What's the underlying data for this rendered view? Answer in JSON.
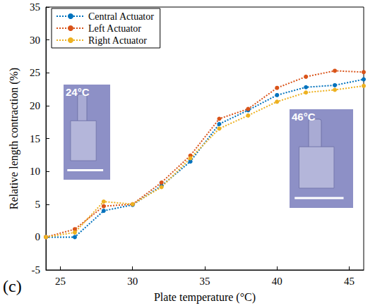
{
  "chart_data": {
    "type": "line",
    "x_label": "Plate temperature (°C)",
    "y_label": "Relative length contraction (%)",
    "panel_label": "(c)",
    "annotations": [
      "24°C",
      "46°C"
    ],
    "x": [
      24,
      26,
      28,
      30,
      32,
      34,
      36,
      38,
      40,
      42,
      44,
      46
    ],
    "series": [
      {
        "name": "Central Actuator",
        "color": "#0072bd",
        "values": [
          0,
          0,
          4,
          4.9,
          7.8,
          11.5,
          17.2,
          19.3,
          21.6,
          22.8,
          23.1,
          24
        ]
      },
      {
        "name": "Left Actuator",
        "color": "#d95319",
        "values": [
          0,
          1.2,
          4.7,
          5,
          8.3,
          12.4,
          18,
          19.5,
          22.7,
          24.4,
          25.3,
          25.1
        ]
      },
      {
        "name": "Right Actuator",
        "color": "#edb120",
        "values": [
          0,
          0.7,
          5.4,
          5,
          7.6,
          12,
          16.5,
          18.5,
          20.6,
          22,
          22.4,
          23
        ]
      }
    ],
    "xlim": [
      24,
      46
    ],
    "xticks": [
      25,
      30,
      35,
      40,
      45
    ],
    "ylim": [
      -5,
      35
    ],
    "yticks": [
      -5,
      0,
      5,
      10,
      15,
      20,
      25,
      30,
      35
    ],
    "grid": false,
    "legend": "upper left",
    "marker": "circle",
    "line_style": "dotted"
  }
}
